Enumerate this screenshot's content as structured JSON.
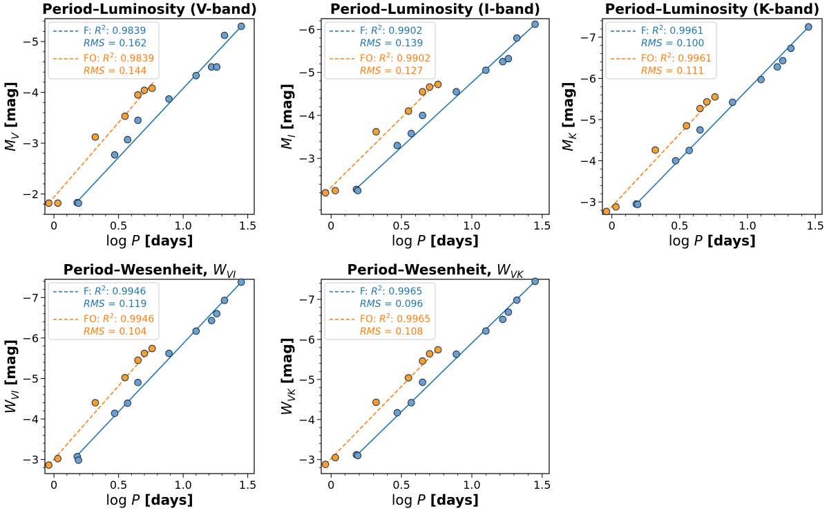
{
  "colors": {
    "F": "#1f77b4",
    "FO": "#ff7f0e",
    "F_marker": "#6a9fd1",
    "FO_marker": "#f5a031"
  },
  "chart_data": [
    {
      "type": "scatter",
      "title": "Period–Luminosity (V-band)",
      "ylabel": {
        "sym": "M",
        "sub": "V",
        "unit": " [mag]"
      },
      "xlabel": {
        "pre": "log ",
        "sym": "P",
        "unit": " [days]"
      },
      "xlim": [
        -0.07,
        1.55
      ],
      "ylim": [
        -1.6,
        -5.45
      ],
      "xticks": [
        0,
        0.5,
        1,
        1.5
      ],
      "xtick_labels": [
        "0",
        "0.5",
        "1.0",
        "1.5"
      ],
      "yticks": [
        -2,
        -3,
        -4,
        -5
      ],
      "ytick_labels": [
        "−2",
        "−3",
        "−4",
        "−5"
      ],
      "legend": [
        {
          "prefix": "F: ",
          "r2_label": "R",
          "r2_value": ": 0.9839",
          "rms_label": "RMS",
          "rms_value": " = 0.162"
        },
        {
          "prefix": "FO: ",
          "r2_label": "R",
          "r2_value": ": 0.9839",
          "rms_label": "RMS",
          "rms_value": " = 0.144"
        }
      ],
      "series": [
        {
          "name": "F",
          "fit_x": [
            0.18,
            1.45
          ],
          "fit_y": [
            -1.85,
            -5.3
          ],
          "points": [
            [
              0.18,
              -1.83
            ],
            [
              0.19,
              -1.82
            ],
            [
              0.47,
              -2.77
            ],
            [
              0.57,
              -3.07
            ],
            [
              0.65,
              -3.45
            ],
            [
              0.89,
              -3.87
            ],
            [
              1.1,
              -4.33
            ],
            [
              1.22,
              -4.5
            ],
            [
              1.26,
              -4.5
            ],
            [
              1.32,
              -5.12
            ],
            [
              1.45,
              -5.3
            ]
          ]
        },
        {
          "name": "FO",
          "fit_x": [
            -0.04,
            0.77
          ],
          "fit_y": [
            -1.82,
            -4.2
          ],
          "points": [
            [
              -0.04,
              -1.82
            ],
            [
              0.03,
              -1.82
            ],
            [
              0.32,
              -3.12
            ],
            [
              0.55,
              -3.53
            ],
            [
              0.65,
              -3.95
            ],
            [
              0.7,
              -4.04
            ],
            [
              0.76,
              -4.08
            ]
          ]
        }
      ]
    },
    {
      "type": "scatter",
      "title": "Period–Luminosity (I-band)",
      "ylabel": {
        "sym": "M",
        "sub": "I",
        "unit": " [mag]"
      },
      "xlabel": {
        "pre": "log ",
        "sym": "P",
        "unit": " [days]"
      },
      "xlim": [
        -0.07,
        1.55
      ],
      "ylim": [
        -1.7,
        -6.25
      ],
      "xticks": [
        0,
        0.5,
        1,
        1.5
      ],
      "xtick_labels": [
        "0",
        "0.5",
        "1.0",
        "1.5"
      ],
      "yticks": [
        -3,
        -4,
        -5,
        -6
      ],
      "ytick_labels": [
        "−3",
        "−4",
        "−5",
        "−6"
      ],
      "legend": [
        {
          "prefix": "F: ",
          "r2_label": "R",
          "r2_value": ": 0.9902",
          "rms_label": "RMS",
          "rms_value": " = 0.139"
        },
        {
          "prefix": "FO: ",
          "r2_label": "R",
          "r2_value": ": 0.9902",
          "rms_label": "RMS",
          "rms_value": " = 0.127"
        }
      ],
      "series": [
        {
          "name": "F",
          "fit_x": [
            0.18,
            1.45
          ],
          "fit_y": [
            -2.3,
            -6.12
          ],
          "points": [
            [
              0.18,
              -2.28
            ],
            [
              0.19,
              -2.25
            ],
            [
              0.47,
              -3.3
            ],
            [
              0.57,
              -3.58
            ],
            [
              0.65,
              -4.0
            ],
            [
              0.89,
              -4.55
            ],
            [
              1.1,
              -5.05
            ],
            [
              1.22,
              -5.25
            ],
            [
              1.26,
              -5.32
            ],
            [
              1.32,
              -5.8
            ],
            [
              1.45,
              -6.12
            ]
          ]
        },
        {
          "name": "FO",
          "fit_x": [
            -0.04,
            0.77
          ],
          "fit_y": [
            -2.2,
            -4.82
          ],
          "points": [
            [
              -0.04,
              -2.2
            ],
            [
              0.03,
              -2.25
            ],
            [
              0.32,
              -3.62
            ],
            [
              0.55,
              -4.1
            ],
            [
              0.65,
              -4.55
            ],
            [
              0.7,
              -4.66
            ],
            [
              0.76,
              -4.72
            ]
          ]
        }
      ]
    },
    {
      "type": "scatter",
      "title": "Period–Luminosity (K-band)",
      "ylabel": {
        "sym": "M",
        "sub": "K",
        "unit": " [mag]"
      },
      "xlabel": {
        "pre": "log ",
        "sym": "P",
        "unit": " [days]"
      },
      "xlim": [
        -0.07,
        1.55
      ],
      "ylim": [
        -2.7,
        -7.45
      ],
      "xticks": [
        0,
        0.5,
        1,
        1.5
      ],
      "xtick_labels": [
        "0",
        "0.5",
        "1.0",
        "1.5"
      ],
      "yticks": [
        -3,
        -4,
        -5,
        -6,
        -7
      ],
      "ytick_labels": [
        "−3",
        "−4",
        "−5",
        "−6",
        "−7"
      ],
      "legend": [
        {
          "prefix": "F: ",
          "r2_label": "R",
          "r2_value": ": 0.9961",
          "rms_label": "RMS",
          "rms_value": " = 0.100"
        },
        {
          "prefix": "FO: ",
          "r2_label": "R",
          "r2_value": ": 0.9961",
          "rms_label": "RMS",
          "rms_value": " = 0.111"
        }
      ],
      "series": [
        {
          "name": "F",
          "fit_x": [
            0.18,
            1.45
          ],
          "fit_y": [
            -2.95,
            -7.25
          ],
          "points": [
            [
              0.18,
              -2.95
            ],
            [
              0.19,
              -2.94
            ],
            [
              0.47,
              -4.0
            ],
            [
              0.57,
              -4.25
            ],
            [
              0.65,
              -4.75
            ],
            [
              0.89,
              -5.42
            ],
            [
              1.1,
              -5.97
            ],
            [
              1.22,
              -6.28
            ],
            [
              1.26,
              -6.43
            ],
            [
              1.32,
              -6.73
            ],
            [
              1.45,
              -7.25
            ]
          ]
        },
        {
          "name": "FO",
          "fit_x": [
            -0.04,
            0.77
          ],
          "fit_y": [
            -2.75,
            -5.6
          ],
          "points": [
            [
              -0.04,
              -2.77
            ],
            [
              0.03,
              -2.88
            ],
            [
              0.32,
              -4.26
            ],
            [
              0.55,
              -4.85
            ],
            [
              0.65,
              -5.27
            ],
            [
              0.7,
              -5.43
            ],
            [
              0.76,
              -5.55
            ]
          ]
        }
      ]
    },
    {
      "type": "scatter",
      "title": "Period–Wesenheit, ",
      "title_sym": "W",
      "title_sub": "VI",
      "ylabel": {
        "sym": "W",
        "sub": "VI",
        "unit": " [mag]"
      },
      "xlabel": {
        "pre": "log ",
        "sym": "P",
        "unit": " [days]"
      },
      "xlim": [
        -0.07,
        1.55
      ],
      "ylim": [
        -2.65,
        -7.45
      ],
      "xticks": [
        0,
        0.5,
        1,
        1.5
      ],
      "xtick_labels": [
        "0",
        "0.5",
        "1.0",
        "1.5"
      ],
      "yticks": [
        -3,
        -4,
        -5,
        -6,
        -7
      ],
      "ytick_labels": [
        "−3",
        "−4",
        "−5",
        "−6",
        "−7"
      ],
      "legend": [
        {
          "prefix": "F: ",
          "r2_label": "R",
          "r2_value": ": 0.9946",
          "rms_label": "RMS",
          "rms_value": " = 0.119"
        },
        {
          "prefix": "FO: ",
          "r2_label": "R",
          "r2_value": ": 0.9946",
          "rms_label": "RMS",
          "rms_value": " = 0.104"
        }
      ],
      "series": [
        {
          "name": "F",
          "fit_x": [
            0.18,
            1.45
          ],
          "fit_y": [
            -3.1,
            -7.38
          ],
          "points": [
            [
              0.18,
              -3.07
            ],
            [
              0.19,
              -2.98
            ],
            [
              0.47,
              -4.14
            ],
            [
              0.57,
              -4.39
            ],
            [
              0.65,
              -4.9
            ],
            [
              0.89,
              -5.62
            ],
            [
              1.1,
              -6.17
            ],
            [
              1.22,
              -6.43
            ],
            [
              1.26,
              -6.6
            ],
            [
              1.32,
              -6.93
            ],
            [
              1.45,
              -7.38
            ]
          ]
        },
        {
          "name": "FO",
          "fit_x": [
            -0.04,
            0.77
          ],
          "fit_y": [
            -2.86,
            -5.8
          ],
          "points": [
            [
              -0.04,
              -2.86
            ],
            [
              0.03,
              -3.02
            ],
            [
              0.32,
              -4.4
            ],
            [
              0.55,
              -5.02
            ],
            [
              0.65,
              -5.45
            ],
            [
              0.7,
              -5.62
            ],
            [
              0.76,
              -5.74
            ]
          ]
        }
      ]
    },
    {
      "type": "scatter",
      "title": "Period–Wesenheit, ",
      "title_sym": "W",
      "title_sub": "VK",
      "ylabel": {
        "sym": "W",
        "sub": "VK",
        "unit": " [mag]"
      },
      "xlabel": {
        "pre": "log ",
        "sym": "P",
        "unit": " [days]"
      },
      "xlim": [
        -0.07,
        1.55
      ],
      "ylim": [
        -2.65,
        -7.5
      ],
      "xticks": [
        0,
        0.5,
        1,
        1.5
      ],
      "xtick_labels": [
        "0",
        "0.5",
        "1.0",
        "1.5"
      ],
      "yticks": [
        -3,
        -4,
        -5,
        -6,
        -7
      ],
      "ytick_labels": [
        "−3",
        "−4",
        "−5",
        "−6",
        "−7"
      ],
      "legend": [
        {
          "prefix": "F: ",
          "r2_label": "R",
          "r2_value": ": 0.9965",
          "rms_label": "RMS",
          "rms_value": " = 0.096"
        },
        {
          "prefix": "FO: ",
          "r2_label": "R",
          "r2_value": ": 0.9965",
          "rms_label": "RMS",
          "rms_value": " = 0.108"
        }
      ],
      "series": [
        {
          "name": "F",
          "fit_x": [
            0.18,
            1.45
          ],
          "fit_y": [
            -3.1,
            -7.45
          ],
          "points": [
            [
              0.18,
              -3.12
            ],
            [
              0.19,
              -3.1
            ],
            [
              0.47,
              -4.17
            ],
            [
              0.57,
              -4.42
            ],
            [
              0.65,
              -4.93
            ],
            [
              0.89,
              -5.63
            ],
            [
              1.1,
              -6.21
            ],
            [
              1.22,
              -6.5
            ],
            [
              1.26,
              -6.68
            ],
            [
              1.32,
              -6.98
            ],
            [
              1.45,
              -7.45
            ]
          ]
        },
        {
          "name": "FO",
          "fit_x": [
            -0.04,
            0.77
          ],
          "fit_y": [
            -2.88,
            -5.8
          ],
          "points": [
            [
              -0.04,
              -2.88
            ],
            [
              0.03,
              -3.05
            ],
            [
              0.32,
              -4.43
            ],
            [
              0.55,
              -5.04
            ],
            [
              0.65,
              -5.46
            ],
            [
              0.7,
              -5.64
            ],
            [
              0.76,
              -5.74
            ]
          ]
        }
      ]
    }
  ]
}
